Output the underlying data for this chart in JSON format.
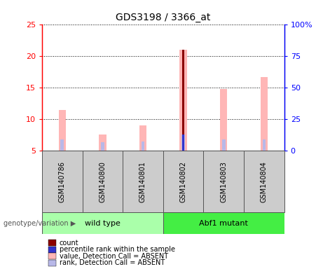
{
  "title": "GDS3198 / 3366_at",
  "samples": [
    "GSM140786",
    "GSM140800",
    "GSM140801",
    "GSM140802",
    "GSM140803",
    "GSM140804"
  ],
  "groups": [
    "wild type",
    "wild type",
    "wild type",
    "Abf1 mutant",
    "Abf1 mutant",
    "Abf1 mutant"
  ],
  "group_labels": [
    "wild type",
    "Abf1 mutant"
  ],
  "value_absent": [
    11.4,
    7.5,
    9.0,
    21.0,
    14.8,
    16.6
  ],
  "rank_absent": [
    6.8,
    6.3,
    6.5,
    7.5,
    6.8,
    6.8
  ],
  "count": [
    0,
    0,
    0,
    21.0,
    0,
    0
  ],
  "percentile_rank": [
    0,
    0,
    0,
    7.5,
    0,
    0
  ],
  "ylim_left": [
    5,
    25
  ],
  "ylim_right": [
    0,
    100
  ],
  "yticks_left": [
    5,
    10,
    15,
    20,
    25
  ],
  "yticks_right": [
    0,
    25,
    50,
    75,
    100
  ],
  "ytick_labels_right": [
    "0",
    "25",
    "50",
    "75",
    "100%"
  ],
  "color_count": "#8b0000",
  "color_percentile": "#3333cc",
  "color_value_absent": "#ffb6b6",
  "color_rank_absent": "#b8b8e8",
  "background_color": "#ffffff",
  "plot_bg_color": "#ffffff",
  "label_box_color": "#cccccc",
  "wt_color": "#aaffaa",
  "mut_color": "#44ee44"
}
